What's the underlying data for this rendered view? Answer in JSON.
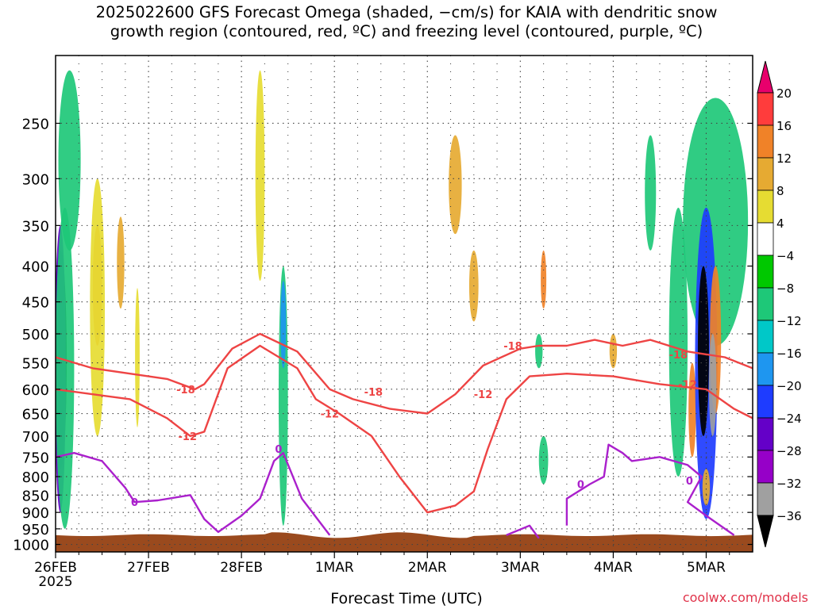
{
  "title_line1": "2025022600 GFS Forecast Omega (shaded, −cm/s) for KAIA with dendritic snow",
  "title_line2": "growth region (contoured, red, ºC) and freezing level (contoured, purple, ºC)",
  "credit": "coolwx.com/models",
  "chart_data": {
    "type": "heatmap",
    "xlabel": "Forecast Time (UTC)",
    "ylabel": "",
    "x_ticks": [
      {
        "label": "26FEB",
        "sublabel": "2025",
        "day": 0
      },
      {
        "label": "27FEB",
        "sublabel": "",
        "day": 1
      },
      {
        "label": "28FEB",
        "sublabel": "",
        "day": 2
      },
      {
        "label": "1MAR",
        "sublabel": "",
        "day": 3
      },
      {
        "label": "2MAR",
        "sublabel": "",
        "day": 4
      },
      {
        "label": "3MAR",
        "sublabel": "",
        "day": 5
      },
      {
        "label": "4MAR",
        "sublabel": "",
        "day": 6
      },
      {
        "label": "5MAR",
        "sublabel": "",
        "day": 7
      }
    ],
    "xlim": [
      0,
      7.5
    ],
    "y_ticks": [
      250,
      300,
      350,
      400,
      450,
      500,
      550,
      600,
      650,
      700,
      750,
      800,
      850,
      900,
      950,
      1000
    ],
    "ylim": [
      200,
      1025
    ],
    "y_scale": "log (pressure, hPa)",
    "grid": "dotted",
    "colorbar": {
      "labels": [
        "20",
        "16",
        "12",
        "8",
        "4",
        "−4",
        "−8",
        "−12",
        "−16",
        "−20",
        "−24",
        "−28",
        "−32",
        "−36"
      ],
      "colors": [
        "#e8006c",
        "#ff3c3c",
        "#f08228",
        "#e6aa32",
        "#e6dc32",
        "#ffffff",
        "#00c800",
        "#1ec878",
        "#00c8c8",
        "#1e96f0",
        "#1e3cff",
        "#6400c8",
        "#9600c8",
        "#a0a0a0",
        "#000000"
      ]
    },
    "omega_regions": [
      {
        "x": 0.05,
        "p": 600,
        "dx": 0.07,
        "dp_top": 380,
        "dp_bot": 780,
        "value": -36
      },
      {
        "x": 0.05,
        "p": 400,
        "dx": 0.06,
        "dp_top": 350,
        "dp_bot": 900,
        "value": -24
      },
      {
        "x": 0.1,
        "p": 550,
        "dx": 0.1,
        "dp_top": 330,
        "dp_bot": 950,
        "value": -8
      },
      {
        "x": 0.15,
        "p": 280,
        "dx": 0.12,
        "dp_top": 210,
        "dp_bot": 380,
        "value": -8
      },
      {
        "x": 0.45,
        "p": 420,
        "dx": 0.05,
        "dp_top": 350,
        "dp_bot": 520,
        "value": 12
      },
      {
        "x": 0.45,
        "p": 500,
        "dx": 0.08,
        "dp_top": 300,
        "dp_bot": 700,
        "value": 4
      },
      {
        "x": 0.7,
        "p": 380,
        "dx": 0.04,
        "dp_top": 340,
        "dp_bot": 460,
        "value": 8
      },
      {
        "x": 2.45,
        "p": 550,
        "dx": 0.05,
        "dp_top": 400,
        "dp_bot": 940,
        "value": -8
      },
      {
        "x": 2.45,
        "p": 480,
        "dx": 0.03,
        "dp_top": 420,
        "dp_bot": 560,
        "value": -16
      },
      {
        "x": 2.2,
        "p": 300,
        "dx": 0.05,
        "dp_top": 210,
        "dp_bot": 420,
        "value": 4
      },
      {
        "x": 0.88,
        "p": 550,
        "dx": 0.025,
        "dp_top": 430,
        "dp_bot": 680,
        "value": 4
      },
      {
        "x": 4.3,
        "p": 300,
        "dx": 0.07,
        "dp_top": 260,
        "dp_bot": 360,
        "value": 8
      },
      {
        "x": 4.5,
        "p": 420,
        "dx": 0.05,
        "dp_top": 380,
        "dp_bot": 480,
        "value": 8
      },
      {
        "x": 5.25,
        "p": 420,
        "dx": 0.03,
        "dp_top": 380,
        "dp_bot": 460,
        "value": 12
      },
      {
        "x": 5.2,
        "p": 520,
        "dx": 0.04,
        "dp_top": 500,
        "dp_bot": 560,
        "value": -8
      },
      {
        "x": 5.25,
        "p": 780,
        "dx": 0.05,
        "dp_top": 700,
        "dp_bot": 820,
        "value": -8
      },
      {
        "x": 6.0,
        "p": 520,
        "dx": 0.04,
        "dp_top": 500,
        "dp_bot": 560,
        "value": 8
      },
      {
        "x": 6.4,
        "p": 300,
        "dx": 0.06,
        "dp_top": 260,
        "dp_bot": 380,
        "value": -8
      },
      {
        "x": 6.7,
        "p": 620,
        "dx": 0.1,
        "dp_top": 330,
        "dp_bot": 800,
        "value": -8
      },
      {
        "x": 6.85,
        "p": 650,
        "dx": 0.04,
        "dp_top": 550,
        "dp_bot": 750,
        "value": 12
      },
      {
        "x": 7.1,
        "p": 300,
        "dx": 0.35,
        "dp_top": 230,
        "dp_bot": 520,
        "value": -8
      },
      {
        "x": 7.0,
        "p": 500,
        "dx": 0.12,
        "dp_top": 330,
        "dp_bot": 920,
        "value": -20
      },
      {
        "x": 6.97,
        "p": 520,
        "dx": 0.06,
        "dp_top": 400,
        "dp_bot": 700,
        "value": -36
      },
      {
        "x": 7.1,
        "p": 550,
        "dx": 0.06,
        "dp_top": 400,
        "dp_bot": 650,
        "value": 12
      },
      {
        "x": 7.07,
        "p": 560,
        "dx": 0.04,
        "dp_top": 500,
        "dp_bot": 700,
        "value": -32
      },
      {
        "x": 7.0,
        "p": 820,
        "dx": 0.04,
        "dp_top": 780,
        "dp_bot": 880,
        "value": 8
      }
    ],
    "contours": [
      {
        "name": "-18",
        "color": "#ee4444",
        "points": [
          [
            0.0,
            540
          ],
          [
            0.4,
            560
          ],
          [
            0.8,
            570
          ],
          [
            1.2,
            580
          ],
          [
            1.5,
            600
          ],
          [
            1.6,
            590
          ],
          [
            1.9,
            525
          ],
          [
            2.2,
            500
          ],
          [
            2.6,
            530
          ],
          [
            2.95,
            600
          ],
          [
            3.2,
            620
          ],
          [
            3.6,
            640
          ],
          [
            4.0,
            650
          ],
          [
            4.3,
            610
          ],
          [
            4.6,
            555
          ],
          [
            5.0,
            525
          ],
          [
            5.2,
            520
          ],
          [
            5.5,
            520
          ],
          [
            5.8,
            510
          ],
          [
            6.1,
            520
          ],
          [
            6.4,
            510
          ],
          [
            6.8,
            530
          ],
          [
            7.2,
            540
          ],
          [
            7.5,
            560
          ]
        ]
      },
      {
        "name": "-12",
        "color": "#ee4444",
        "points": [
          [
            0.0,
            600
          ],
          [
            0.4,
            610
          ],
          [
            0.8,
            620
          ],
          [
            1.2,
            660
          ],
          [
            1.45,
            700
          ],
          [
            1.6,
            690
          ],
          [
            1.85,
            560
          ],
          [
            2.2,
            520
          ],
          [
            2.6,
            560
          ],
          [
            2.8,
            620
          ],
          [
            3.05,
            650
          ],
          [
            3.4,
            700
          ],
          [
            3.7,
            800
          ],
          [
            4.0,
            900
          ],
          [
            4.3,
            880
          ],
          [
            4.5,
            840
          ],
          [
            4.65,
            730
          ],
          [
            4.85,
            620
          ],
          [
            5.1,
            575
          ],
          [
            5.5,
            570
          ],
          [
            6.0,
            575
          ],
          [
            6.5,
            590
          ],
          [
            7.0,
            600
          ],
          [
            7.3,
            640
          ],
          [
            7.5,
            660
          ]
        ]
      },
      {
        "name": "0",
        "color": "#aa20cc",
        "points": [
          [
            0.0,
            750
          ],
          [
            0.2,
            740
          ],
          [
            0.5,
            760
          ],
          [
            0.75,
            830
          ],
          [
            0.85,
            870
          ],
          [
            1.1,
            865
          ],
          [
            1.45,
            850
          ],
          [
            1.6,
            920
          ],
          [
            1.75,
            960
          ],
          [
            2.0,
            910
          ],
          [
            2.2,
            860
          ],
          [
            2.35,
            760
          ],
          [
            2.45,
            740
          ],
          [
            2.65,
            860
          ],
          [
            2.95,
            970
          ]
        ]
      },
      {
        "name": "0",
        "color": "#aa20cc",
        "points": [
          [
            4.85,
            970
          ],
          [
            5.1,
            940
          ],
          [
            5.15,
            960
          ],
          [
            5.2,
            980
          ]
        ]
      },
      {
        "name": "0",
        "color": "#aa20cc",
        "points": [
          [
            5.5,
            940
          ],
          [
            5.5,
            860
          ],
          [
            5.75,
            820
          ],
          [
            5.9,
            800
          ],
          [
            5.95,
            720
          ],
          [
            6.1,
            740
          ],
          [
            6.2,
            760
          ],
          [
            6.5,
            750
          ],
          [
            6.8,
            770
          ],
          [
            6.95,
            800
          ],
          [
            6.8,
            870
          ],
          [
            7.0,
            910
          ],
          [
            7.3,
            970
          ]
        ]
      }
    ],
    "contour_labels": [
      {
        "text": "-18",
        "x": 1.4,
        "p": 600
      },
      {
        "text": "-18",
        "x": 3.42,
        "p": 605
      },
      {
        "text": "-18",
        "x": 4.92,
        "p": 520
      },
      {
        "text": "-18",
        "x": 6.7,
        "p": 535
      },
      {
        "text": "-12",
        "x": 1.42,
        "p": 700
      },
      {
        "text": "-12",
        "x": 2.95,
        "p": 650
      },
      {
        "text": "-12",
        "x": 4.6,
        "p": 610
      },
      {
        "text": "-12",
        "x": 6.8,
        "p": 590
      },
      {
        "text": "0",
        "x": 0.85,
        "p": 870
      },
      {
        "text": "0",
        "x": 2.4,
        "p": 730
      },
      {
        "text": "0",
        "x": 5.65,
        "p": 820
      },
      {
        "text": "0",
        "x": 6.82,
        "p": 810
      }
    ]
  }
}
